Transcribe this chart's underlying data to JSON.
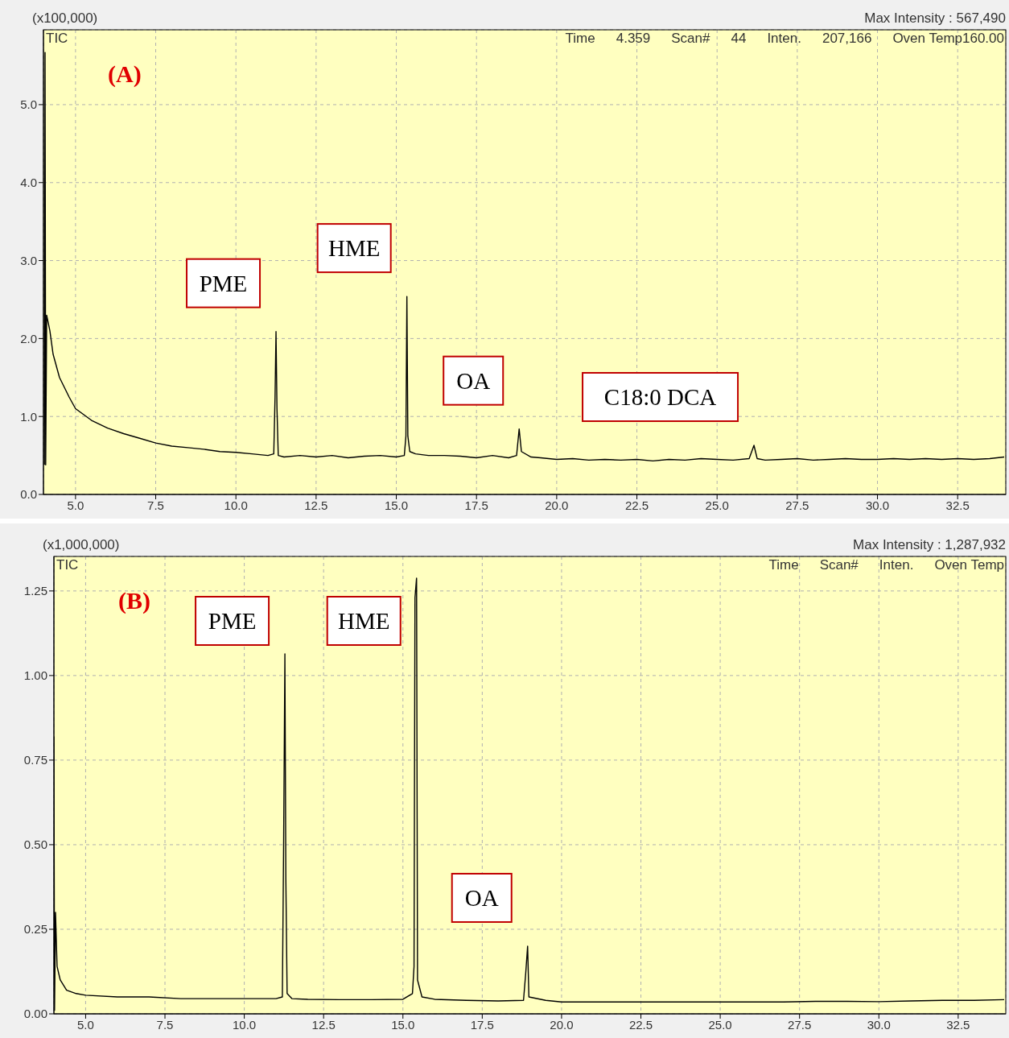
{
  "chart_data": [
    {
      "type": "line",
      "title": "(A)",
      "ylabel": "(x100,000)",
      "xlim": [
        4,
        34
      ],
      "ylim": [
        0,
        5.96
      ],
      "xticks": [
        {
          "value": 5,
          "label": "5.0"
        },
        {
          "value": 7.5,
          "label": "7.5"
        },
        {
          "value": 10,
          "label": "10.0"
        },
        {
          "value": 12.5,
          "label": "12.5"
        },
        {
          "value": 15,
          "label": "15.0"
        },
        {
          "value": 17.5,
          "label": "17.5"
        },
        {
          "value": 20,
          "label": "20.0"
        },
        {
          "value": 22.5,
          "label": "22.5"
        },
        {
          "value": 25,
          "label": "25.0"
        },
        {
          "value": 27.5,
          "label": "27.5"
        },
        {
          "value": 30,
          "label": "30.0"
        },
        {
          "value": 32.5,
          "label": "32.5"
        }
      ],
      "yticks": [
        {
          "value": 0,
          "label": "0.0"
        },
        {
          "value": 1,
          "label": "1.0"
        },
        {
          "value": 2,
          "label": "2.0"
        },
        {
          "value": 3,
          "label": "3.0"
        },
        {
          "value": 4,
          "label": "4.0"
        },
        {
          "value": 5,
          "label": "5.0"
        }
      ],
      "grid": true,
      "marker": "none",
      "series": [
        {
          "color": "#000000",
          "x": [
            4.03,
            4.05,
            4.07,
            4.1,
            4.2,
            4.3,
            4.5,
            4.8,
            5.0,
            5.5,
            6.0,
            6.5,
            7.0,
            7.5,
            8.0,
            8.5,
            9.0,
            9.5,
            10.0,
            10.5,
            11.0,
            11.18,
            11.22,
            11.25,
            11.28,
            11.32,
            11.5,
            12.0,
            12.5,
            13.0,
            13.5,
            14.0,
            14.5,
            15.0,
            15.25,
            15.3,
            15.33,
            15.36,
            15.42,
            15.6,
            16.0,
            16.5,
            17.0,
            17.5,
            18.0,
            18.5,
            18.75,
            18.83,
            18.9,
            19.2,
            19.5,
            20.0,
            20.5,
            21.0,
            21.5,
            22.0,
            22.5,
            23.0,
            23.5,
            24.0,
            24.5,
            25.0,
            25.5,
            26.0,
            26.15,
            26.25,
            26.5,
            27.0,
            27.5,
            28.0,
            28.5,
            29.0,
            29.5,
            30.0,
            30.5,
            31.0,
            31.5,
            32.0,
            32.5,
            33.0,
            33.5,
            33.95
          ],
          "values": [
            0.38,
            5.67,
            0.38,
            2.3,
            2.1,
            1.8,
            1.5,
            1.25,
            1.1,
            0.95,
            0.85,
            0.78,
            0.72,
            0.66,
            0.62,
            0.6,
            0.58,
            0.55,
            0.54,
            0.52,
            0.5,
            0.52,
            1.25,
            2.09,
            1.1,
            0.5,
            0.48,
            0.5,
            0.48,
            0.5,
            0.47,
            0.49,
            0.5,
            0.48,
            0.5,
            0.75,
            2.54,
            0.75,
            0.55,
            0.52,
            0.5,
            0.5,
            0.49,
            0.47,
            0.5,
            0.47,
            0.5,
            0.84,
            0.55,
            0.48,
            0.47,
            0.45,
            0.46,
            0.44,
            0.45,
            0.44,
            0.45,
            0.43,
            0.45,
            0.44,
            0.46,
            0.45,
            0.44,
            0.46,
            0.63,
            0.46,
            0.44,
            0.45,
            0.46,
            0.44,
            0.45,
            0.46,
            0.45,
            0.45,
            0.46,
            0.45,
            0.46,
            0.45,
            0.46,
            0.45,
            0.46,
            0.48
          ]
        }
      ],
      "annotations": [
        "Max Intensity : 567,490",
        "TIC",
        "Time",
        "4.359",
        "Scan#",
        "44",
        "Inten.",
        "207,166",
        "Oven Temp160.00",
        {
          "text": "PME",
          "x": 11.25,
          "y": 2.09
        },
        {
          "text": "HME",
          "x": 15.33,
          "y": 2.54
        },
        {
          "text": "OA",
          "x": 18.83,
          "y": 0.84
        },
        {
          "text": "C18:0 DCA",
          "x": 26.15,
          "y": 0.63
        }
      ]
    },
    {
      "type": "line",
      "title": "(B)",
      "ylabel": "(x1,000,000)",
      "xlim": [
        4,
        34
      ],
      "ylim": [
        0,
        1.352
      ],
      "xticks": [
        {
          "value": 5,
          "label": "5.0"
        },
        {
          "value": 7.5,
          "label": "7.5"
        },
        {
          "value": 10,
          "label": "10.0"
        },
        {
          "value": 12.5,
          "label": "12.5"
        },
        {
          "value": 15,
          "label": "15.0"
        },
        {
          "value": 17.5,
          "label": "17.5"
        },
        {
          "value": 20,
          "label": "20.0"
        },
        {
          "value": 22.5,
          "label": "22.5"
        },
        {
          "value": 25,
          "label": "25.0"
        },
        {
          "value": 27.5,
          "label": "27.5"
        },
        {
          "value": 30,
          "label": "30.0"
        },
        {
          "value": 32.5,
          "label": "32.5"
        }
      ],
      "yticks": [
        {
          "value": 0,
          "label": "0.00"
        },
        {
          "value": 0.25,
          "label": "0.25"
        },
        {
          "value": 0.5,
          "label": "0.50"
        },
        {
          "value": 0.75,
          "label": "0.75"
        },
        {
          "value": 1,
          "label": "1.00"
        },
        {
          "value": 1.25,
          "label": "1.25"
        }
      ],
      "grid": true,
      "marker": "none",
      "series": [
        {
          "color": "#000000",
          "x": [
            4.0,
            4.02,
            4.05,
            4.1,
            4.2,
            4.4,
            4.7,
            5.0,
            6.0,
            7.0,
            8.0,
            9.0,
            10.0,
            11.0,
            11.2,
            11.24,
            11.28,
            11.31,
            11.35,
            11.5,
            12.0,
            13.0,
            14.0,
            15.0,
            15.3,
            15.35,
            15.38,
            15.43,
            15.46,
            15.6,
            16.0,
            17.0,
            18.0,
            18.8,
            18.87,
            18.93,
            18.97,
            19.5,
            20.0,
            21.0,
            22.0,
            23.0,
            24.0,
            25.0,
            26.0,
            27.0,
            28.0,
            29.0,
            30.0,
            31.0,
            32.0,
            33.0,
            33.95
          ],
          "values": [
            0.82,
            0.01,
            0.3,
            0.14,
            0.1,
            0.07,
            0.06,
            0.055,
            0.05,
            0.05,
            0.045,
            0.045,
            0.045,
            0.045,
            0.05,
            0.5,
            1.064,
            0.4,
            0.06,
            0.045,
            0.043,
            0.042,
            0.042,
            0.043,
            0.06,
            0.14,
            1.23,
            1.288,
            0.1,
            0.05,
            0.043,
            0.04,
            0.038,
            0.04,
            0.12,
            0.2,
            0.05,
            0.04,
            0.035,
            0.035,
            0.035,
            0.035,
            0.035,
            0.035,
            0.035,
            0.035,
            0.037,
            0.037,
            0.036,
            0.038,
            0.04,
            0.04,
            0.042
          ]
        }
      ],
      "annotations": [
        "Max Intensity : 1,287,932",
        "TIC",
        "Time",
        "Scan#",
        "Inten.",
        "Oven Temp",
        {
          "text": "PME",
          "x": 11.28,
          "y": 1.064
        },
        {
          "text": "HME",
          "x": 15.43,
          "y": 1.288
        },
        {
          "text": "OA",
          "x": 18.93,
          "y": 0.2
        }
      ]
    }
  ]
}
